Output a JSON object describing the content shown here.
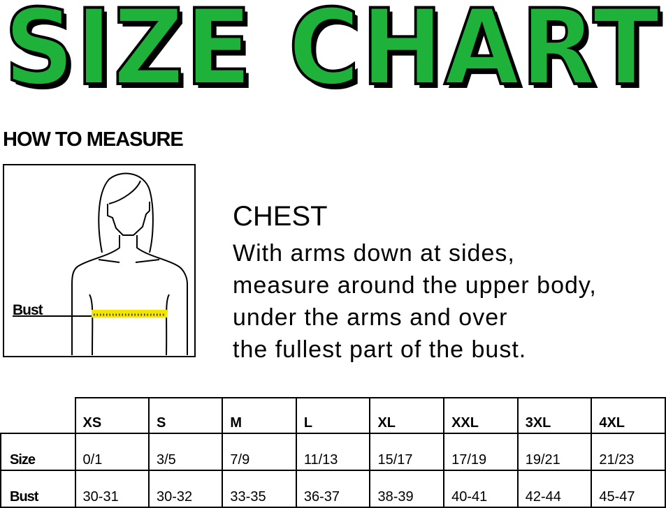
{
  "title": "SIZE CHART",
  "how_to_measure": "HOW TO MEASURE",
  "figure": {
    "label": "Bust",
    "tape_color": "#f2e600"
  },
  "chest": {
    "title": "CHEST",
    "lines": [
      "With arms down at sides,",
      "measure around the upper body,",
      "under the arms and over",
      "the fullest part of the bust."
    ]
  },
  "colors": {
    "title_fill": "#1fb23b",
    "outline": "#000000"
  },
  "table": {
    "sizes": [
      "XS",
      "S",
      "M",
      "L",
      "XL",
      "XXL",
      "3XL",
      "4XL"
    ],
    "rows": [
      {
        "label": "Size",
        "values": [
          "0/1",
          "3/5",
          "7/9",
          "11/13",
          "15/17",
          "17/19",
          "19/21",
          "21/23"
        ]
      },
      {
        "label": "Bust",
        "values": [
          "30-31",
          "30-32",
          "33-35",
          "36-37",
          "38-39",
          "40-41",
          "42-44",
          "45-47"
        ]
      }
    ]
  }
}
